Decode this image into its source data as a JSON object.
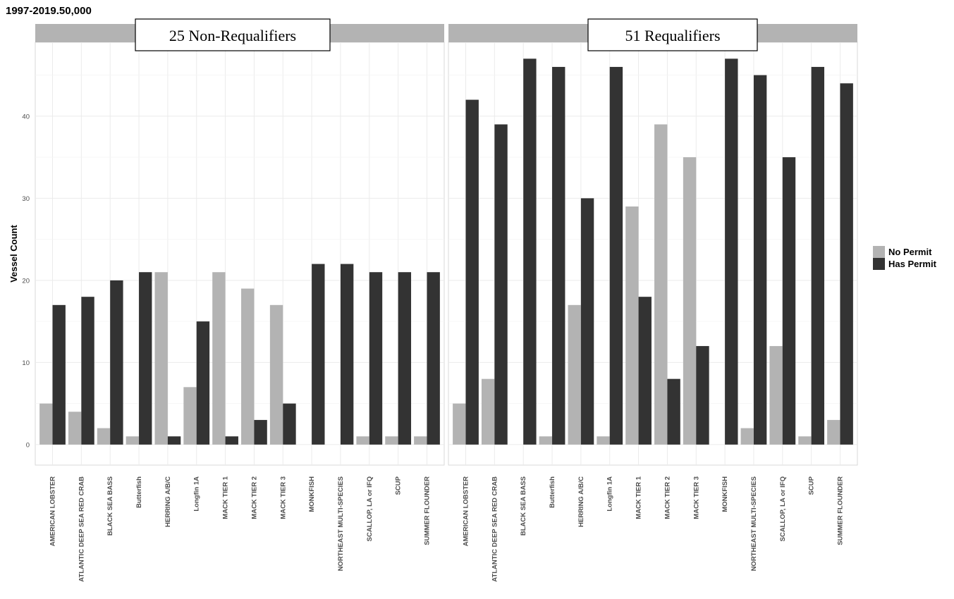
{
  "top_title": "1997-2019.50,000",
  "legend": {
    "items": [
      {
        "label": "No Permit",
        "color": "#b3b3b3"
      },
      {
        "label": "Has Permit",
        "color": "#333333"
      }
    ]
  },
  "chart_data": {
    "type": "bar",
    "ylabel": "Vessel Count",
    "xlabel": "",
    "ylim": [
      -2.5,
      49
    ],
    "yticks": [
      0,
      10,
      20,
      30,
      40
    ],
    "categories": [
      "AMERICAN LOBSTER",
      "ATLANTIC DEEP SEA RED CRAB",
      "BLACK SEA BASS",
      "Butterfish",
      "HERRING A/B/C",
      "Longfin 1A",
      "MACK TIER 1",
      "MACK TIER 2",
      "MACK TIER 3",
      "MONKFISH",
      "NORTHEAST MULTI-SPECIES",
      "SCALLOP, LA or IFQ",
      "SCUP",
      "SUMMER FLOUNDER"
    ],
    "series_colors": {
      "No Permit": "#b3b3b3",
      "Has Permit": "#333333"
    },
    "facets": [
      {
        "label": "25 Non-Requalifiers",
        "series": [
          {
            "name": "No Permit",
            "values": [
              5,
              4,
              2,
              1,
              21,
              7,
              21,
              19,
              17,
              0,
              0,
              1,
              1,
              1
            ]
          },
          {
            "name": "Has Permit",
            "values": [
              17,
              18,
              20,
              21,
              1,
              15,
              1,
              3,
              5,
              22,
              22,
              21,
              21,
              21
            ]
          }
        ]
      },
      {
        "label": "51 Requalifiers",
        "series": [
          {
            "name": "No Permit",
            "values": [
              5,
              8,
              0,
              1,
              17,
              1,
              29,
              39,
              35,
              0,
              2,
              12,
              1,
              3
            ]
          },
          {
            "name": "Has Permit",
            "values": [
              42,
              39,
              47,
              46,
              30,
              46,
              18,
              8,
              12,
              47,
              45,
              35,
              46,
              44
            ]
          }
        ]
      }
    ]
  }
}
